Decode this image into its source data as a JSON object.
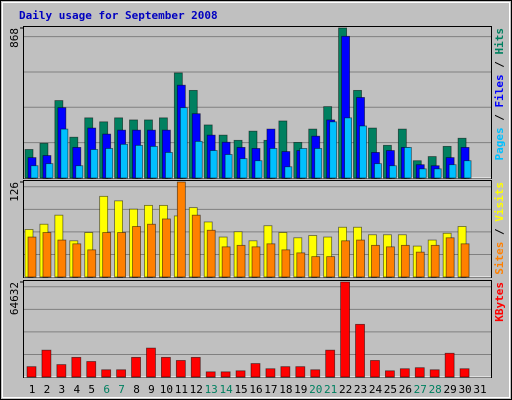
{
  "chart_data": [
    {
      "type": "bar",
      "title": "Daily usage for September 2008",
      "ylim": [
        0,
        868
      ],
      "yticks": [
        868
      ],
      "legend_separator": " / ",
      "series": [
        {
          "name": "Hits",
          "color": "#008060",
          "values": [
            165,
            201,
            448,
            236,
            348,
            325,
            348,
            336,
            336,
            348,
            608,
            507,
            307,
            248,
            218,
            271,
            218,
            330,
            206,
            283,
            413,
            868,
            507,
            289,
            189,
            283,
            100,
            124,
            183,
            230,
            0
          ]
        },
        {
          "name": "Files",
          "color": "#0000ff",
          "values": [
            118,
            130,
            407,
            177,
            289,
            254,
            277,
            277,
            277,
            277,
            537,
            372,
            248,
            207,
            177,
            171,
            283,
            153,
            159,
            242,
            336,
            820,
            466,
            148,
            159,
            177,
            77,
            71,
            118,
            177,
            0
          ]
        },
        {
          "name": "Pages",
          "color": "#00c0ff",
          "values": [
            71,
            83,
            283,
            71,
            165,
            171,
            195,
            189,
            183,
            148,
            407,
            212,
            159,
            136,
            112,
            100,
            171,
            65,
            171,
            171,
            325,
            348,
            301,
            83,
            71,
            177,
            53,
            53,
            77,
            100,
            0
          ]
        }
      ]
    },
    {
      "type": "bar",
      "ylim": [
        0,
        126
      ],
      "yticks": [
        126
      ],
      "legend_separator": " / ",
      "series": [
        {
          "name": "Visits",
          "color": "#ffff00",
          "values": [
            63,
            70,
            82,
            48,
            59,
            107,
            101,
            90,
            95,
            95,
            81,
            92,
            73,
            53,
            60,
            48,
            68,
            59,
            52,
            55,
            53,
            66,
            66,
            56,
            56,
            56,
            41,
            49,
            58,
            67,
            0
          ]
        },
        {
          "name": "Sites",
          "color": "#ff8000",
          "values": [
            53,
            59,
            49,
            44,
            36,
            59,
            59,
            67,
            70,
            77,
            126,
            82,
            62,
            40,
            42,
            40,
            44,
            36,
            32,
            27,
            27,
            48,
            49,
            42,
            40,
            42,
            33,
            42,
            52,
            44,
            0
          ]
        }
      ]
    },
    {
      "type": "bar",
      "ylim": [
        0,
        64632
      ],
      "yticks": [
        64632
      ],
      "legend_separator": " / ",
      "categories": [
        "1",
        "2",
        "3",
        "4",
        "5",
        "6",
        "7",
        "8",
        "9",
        "10",
        "11",
        "12",
        "13",
        "14",
        "15",
        "16",
        "17",
        "18",
        "19",
        "20",
        "21",
        "22",
        "23",
        "24",
        "25",
        "26",
        "27",
        "28",
        "29",
        "30",
        "31"
      ],
      "category_colors": [
        "#000000",
        "#000000",
        "#000000",
        "#000000",
        "#000000",
        "#008060",
        "#008060",
        "#000000",
        "#000000",
        "#000000",
        "#000000",
        "#000000",
        "#008060",
        "#008060",
        "#000000",
        "#000000",
        "#000000",
        "#000000",
        "#000000",
        "#008060",
        "#008060",
        "#000000",
        "#000000",
        "#000000",
        "#000000",
        "#000000",
        "#008060",
        "#008060",
        "#000000",
        "#000000",
        "#000000"
      ],
      "series": [
        {
          "name": "KBytes",
          "color": "#ff0000",
          "values": [
            7025,
            18265,
            8430,
            13348,
            10538,
            4918,
            4918,
            13348,
            19670,
            13348,
            11240,
            13348,
            3513,
            3513,
            4215,
            9133,
            5620,
            7025,
            7025,
            4918,
            18265,
            64632,
            35828,
            11240,
            4215,
            5620,
            6323,
            4918,
            16158,
            5620,
            0
          ]
        }
      ]
    }
  ]
}
